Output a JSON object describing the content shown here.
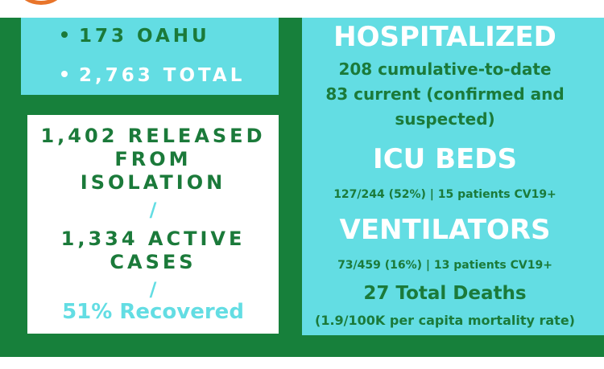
{
  "cases": {
    "oahu": "173 OAHU",
    "total": "2,763 TOTAL"
  },
  "released": {
    "line1": "1,402 RELEASED",
    "line2": "FROM",
    "line3": "ISOLATION",
    "slash1": "/",
    "line4": "1,334 ACTIVE",
    "line5": "CASES",
    "slash2": "/",
    "recovered": "51% Recovered"
  },
  "hospital": {
    "title": "HOSPITALIZED",
    "cumulative": "208 cumulative-to-date",
    "current_line1": "83 current (confirmed and",
    "current_line2": "suspected)",
    "icu_title": "ICU BEDS",
    "icu_detail": "127/244 (52%) | 15 patients CV19+",
    "vent_title": "VENTILATORS",
    "vent_detail": "73/459 (16%) | 13 patients CV19+",
    "deaths": "27 Total Deaths",
    "mortality": "(1.9/100K per capita mortality rate)"
  },
  "colors": {
    "green": "#17803b",
    "dark_green_text": "#1b7a3a",
    "cyan": "#63dde3",
    "white": "#ffffff",
    "logo_orange": "#e8742a"
  }
}
